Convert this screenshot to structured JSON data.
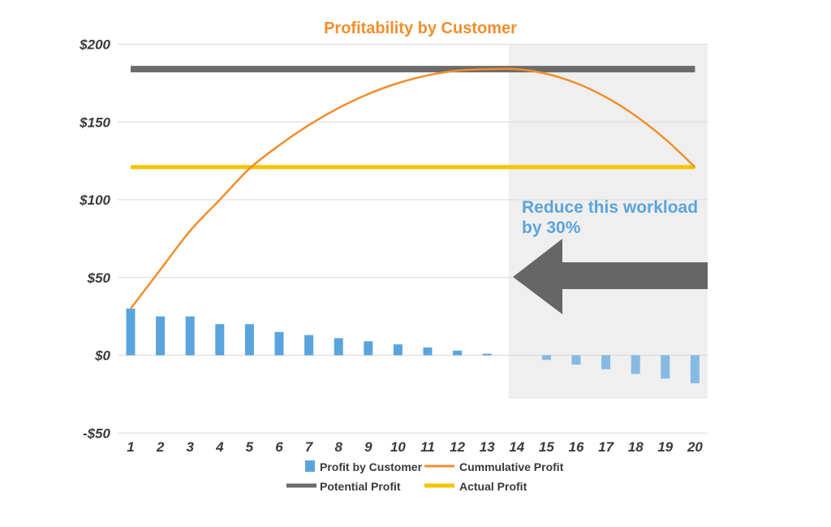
{
  "chart_data": {
    "type": "bar",
    "title": "Profitability by Customer",
    "categories": [
      "1",
      "2",
      "3",
      "4",
      "5",
      "6",
      "7",
      "8",
      "9",
      "10",
      "11",
      "12",
      "13",
      "14",
      "15",
      "16",
      "17",
      "18",
      "19",
      "20"
    ],
    "ylim": [
      -50,
      200
    ],
    "yticks": [
      -50,
      0,
      50,
      100,
      150,
      200
    ],
    "ytick_labels": [
      "-$50",
      "$0",
      "$50",
      "$100",
      "$150",
      "$200"
    ],
    "series": [
      {
        "name": "Profit by Customer",
        "kind": "bar",
        "color": "#5aa4dd",
        "values": [
          30,
          25,
          25,
          20,
          20,
          15,
          13,
          11,
          9,
          7,
          5,
          3,
          1,
          0,
          -3,
          -6,
          -9,
          -12,
          -15,
          -18
        ]
      },
      {
        "name": "Cummulative Profit",
        "kind": "line",
        "color": "#f28e2b",
        "values": [
          30,
          55,
          80,
          100,
          120,
          135,
          148,
          159,
          168,
          175,
          180,
          183,
          184,
          184,
          181,
          175,
          166,
          154,
          139,
          121
        ]
      },
      {
        "name": "Potential Profit",
        "kind": "hline",
        "color": "#6b6b6b",
        "value": 184
      },
      {
        "name": "Actual Profit",
        "kind": "hline",
        "color": "#f5c400",
        "value": 121
      }
    ],
    "highlight_region": {
      "from_category": "14",
      "to_category": "20",
      "color": "#efefef"
    },
    "annotation": {
      "line1": "Reduce this workload",
      "line2": "by 30%",
      "color": "#5aa4dd"
    },
    "arrow": {
      "direction": "left",
      "color": "#666666"
    },
    "legend": {
      "position": "bottom",
      "items": [
        {
          "label": "Profit by Customer",
          "marker": "square",
          "color": "#5aa4dd"
        },
        {
          "label": "Cummulative Profit",
          "marker": "line",
          "color": "#f28e2b"
        },
        {
          "label": "Potential Profit",
          "marker": "thick-line",
          "color": "#6b6b6b"
        },
        {
          "label": "Actual Profit",
          "marker": "thick-line",
          "color": "#f5c400"
        }
      ]
    }
  }
}
